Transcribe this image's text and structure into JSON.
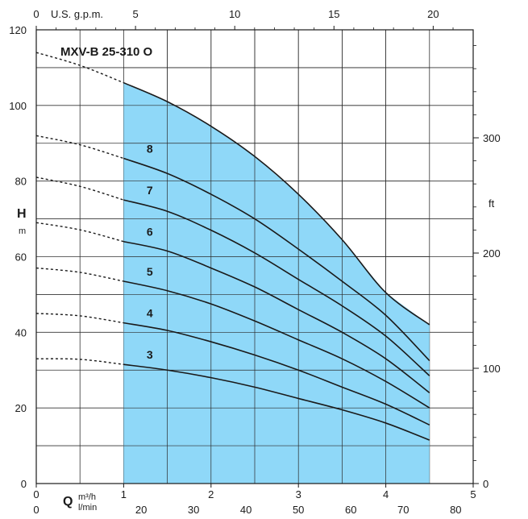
{
  "chart_data": {
    "type": "line",
    "title": "MXV-B 25-310 O",
    "x": [
      1,
      1.5,
      2,
      2.5,
      3,
      3.5,
      4,
      4.5
    ],
    "xlim": [
      0,
      5
    ],
    "ylim": [
      0,
      120
    ],
    "operating_range": [
      1,
      4.5
    ],
    "fill_color": "#8fd8f8",
    "x_label_symbol": "Q",
    "x_unit": "m³/h",
    "x_unit_secondary": "l/min",
    "y_label_symbol": "H",
    "y_unit": "m",
    "y_ticks": [
      "0",
      "20",
      "40",
      "60",
      "80",
      "100",
      "120"
    ],
    "x_ticks": [
      "0",
      "1",
      "2",
      "3",
      "4",
      "5"
    ],
    "lpm_ticks": [
      "0",
      "20",
      "30",
      "40",
      "50",
      "60",
      "70",
      "80"
    ],
    "top_axis_label": "U.S. g.p.m.",
    "top_ticks": [
      "0",
      "5",
      "10",
      "15",
      "20"
    ],
    "right_axis_label": "ft",
    "right_ticks": [
      "0",
      "100",
      "200",
      "300"
    ],
    "series": [
      {
        "name": "3",
        "shutoff": 33,
        "values": [
          31.5,
          30,
          28,
          25.5,
          22.5,
          19.5,
          16,
          11.5
        ]
      },
      {
        "name": "4",
        "shutoff": 45,
        "values": [
          42.5,
          40.5,
          37.5,
          34,
          30,
          25.5,
          21,
          15.5
        ]
      },
      {
        "name": "5",
        "shutoff": 57,
        "values": [
          53.5,
          51,
          47.5,
          43,
          38,
          33,
          27,
          20
        ]
      },
      {
        "name": "6",
        "shutoff": 69,
        "values": [
          64,
          61.5,
          57,
          52,
          46,
          40,
          33,
          24
        ]
      },
      {
        "name": "7",
        "shutoff": 81,
        "values": [
          75,
          72,
          67,
          61,
          54,
          47,
          39,
          28.5
        ]
      },
      {
        "name": "8",
        "shutoff": 92,
        "values": [
          86,
          82,
          76.5,
          70,
          62,
          53.5,
          44.5,
          32.5
        ]
      }
    ],
    "envelope": {
      "shutoff": 114,
      "values": [
        106,
        101,
        94.5,
        86.5,
        76.5,
        64.5,
        50.5,
        42
      ]
    }
  }
}
